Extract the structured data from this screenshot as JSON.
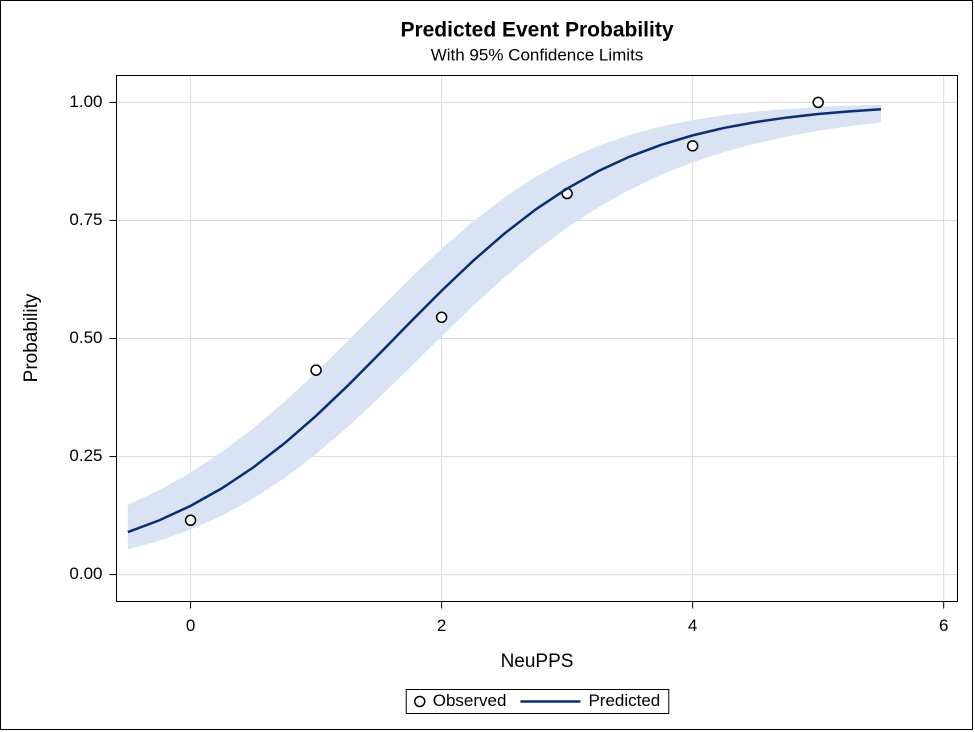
{
  "chart_data": {
    "type": "line",
    "title": "Predicted Event Probability",
    "subtitle": "With 95% Confidence Limits",
    "x_label": "NeuPPS",
    "y_label": "Probability",
    "xlim": [
      -0.59,
      6.11
    ],
    "ylim": [
      -0.057,
      1.057
    ],
    "xticks": [
      0,
      2,
      4,
      6
    ],
    "yticks": [
      {
        "value": 0,
        "label": "0.00"
      },
      {
        "value": 0.25,
        "label": "0.25"
      },
      {
        "value": 0.5,
        "label": "0.50"
      },
      {
        "value": 0.75,
        "label": "0.75"
      },
      {
        "value": 1,
        "label": "1.00"
      }
    ],
    "grid": true,
    "legend": "bottom",
    "x": [
      -0.5,
      -0.25,
      0,
      0.25,
      0.5,
      0.75,
      1,
      1.25,
      1.5,
      1.75,
      2,
      2.25,
      2.5,
      2.75,
      3,
      3.25,
      3.5,
      3.75,
      4,
      4.25,
      4.5,
      4.75,
      5,
      5.25,
      5.5
    ],
    "band": {
      "color": "#dae3f3",
      "lower": [
        0.0534,
        0.0717,
        0.0953,
        0.1248,
        0.1611,
        0.2047,
        0.2552,
        0.3121,
        0.374,
        0.4389,
        0.5047,
        0.5689,
        0.6295,
        0.6851,
        0.7348,
        0.7781,
        0.8153,
        0.8467,
        0.8731,
        0.895,
        0.9129,
        0.9277,
        0.9399,
        0.9498,
        0.9579
      ],
      "upper": [
        0.1474,
        0.1788,
        0.216,
        0.2598,
        0.31,
        0.3665,
        0.4283,
        0.4939,
        0.5609,
        0.6273,
        0.6902,
        0.7479,
        0.799,
        0.8426,
        0.8788,
        0.9081,
        0.9312,
        0.9491,
        0.9627,
        0.973,
        0.9805,
        0.9861,
        0.9902,
        0.9931,
        0.9952
      ]
    },
    "series": [
      {
        "name": "Observed",
        "mode": "markers",
        "color": "#000000",
        "x": [
          0,
          1,
          2,
          3,
          4,
          5
        ],
        "values": [
          0.115,
          0.433,
          0.545,
          0.807,
          0.908,
          1.0
        ]
      },
      {
        "name": "Predicted",
        "mode": "line",
        "color": "#0b2e73",
        "values": [
          0.09,
          0.1148,
          0.1455,
          0.1828,
          0.2271,
          0.2784,
          0.3363,
          0.3995,
          0.4663,
          0.5343,
          0.6011,
          0.6643,
          0.7221,
          0.7734,
          0.8176,
          0.8548,
          0.8854,
          0.9103,
          0.9302,
          0.946,
          0.9583,
          0.9679,
          0.9754,
          0.9811,
          0.9856
        ]
      }
    ]
  }
}
